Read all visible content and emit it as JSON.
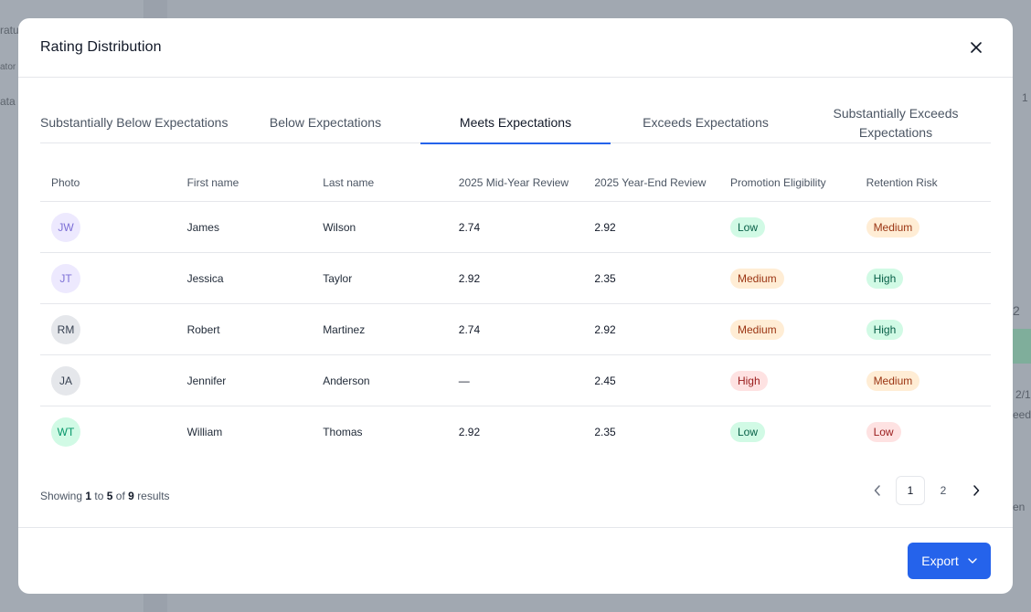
{
  "background": {
    "sidebar_fragments": [
      "ratu",
      "ator",
      "ata"
    ],
    "right_fragments": [
      "1",
      "2",
      "2/1",
      "eeds",
      "en"
    ]
  },
  "modal": {
    "title": "Rating Distribution",
    "tabs": [
      {
        "label": "Substantially Below Expectations",
        "active": false
      },
      {
        "label": "Below Expectations",
        "active": false
      },
      {
        "label": "Meets Expectations",
        "active": true
      },
      {
        "label": "Exceeds Expectations",
        "active": false
      },
      {
        "label": "Substantially Exceeds Expectations",
        "active": false
      }
    ],
    "table": {
      "columns": [
        "Photo",
        "First name",
        "Last name",
        "2025 Mid-Year Review",
        "2025 Year-End Review",
        "Promotion Eligibility",
        "Retention Risk"
      ],
      "rows": [
        {
          "initials": "JW",
          "avatar_bg": "#ede9fe",
          "avatar_fg": "#7c6fd6",
          "first": "James",
          "last": "Wilson",
          "mid": "2.74",
          "end": "2.92",
          "promotion": "Low",
          "promotion_style": "low-green",
          "risk": "Medium",
          "risk_style": "medium"
        },
        {
          "initials": "JT",
          "avatar_bg": "#ede9fe",
          "avatar_fg": "#7c6fd6",
          "first": "Jessica",
          "last": "Taylor",
          "mid": "2.92",
          "end": "2.35",
          "promotion": "Medium",
          "promotion_style": "medium",
          "risk": "High",
          "risk_style": "high-green"
        },
        {
          "initials": "RM",
          "avatar_bg": "#e5e7eb",
          "avatar_fg": "#374151",
          "first": "Robert",
          "last": "Martinez",
          "mid": "2.74",
          "end": "2.92",
          "promotion": "Medium",
          "promotion_style": "medium",
          "risk": "High",
          "risk_style": "high-green"
        },
        {
          "initials": "JA",
          "avatar_bg": "#e5e7eb",
          "avatar_fg": "#374151",
          "first": "Jennifer",
          "last": "Anderson",
          "mid": "—",
          "end": "2.45",
          "promotion": "High",
          "promotion_style": "high-red",
          "risk": "Medium",
          "risk_style": "medium"
        },
        {
          "initials": "WT",
          "avatar_bg": "#d1fae5",
          "avatar_fg": "#059669",
          "first": "William",
          "last": "Thomas",
          "mid": "2.92",
          "end": "2.35",
          "promotion": "Low",
          "promotion_style": "low-green",
          "risk": "Low",
          "risk_style": "low-red"
        }
      ]
    },
    "results": {
      "prefix": "Showing",
      "from": "1",
      "to_word": "to",
      "to": "5",
      "of_word": "of",
      "total": "9",
      "suffix": "results"
    },
    "pagination": {
      "pages": [
        "1",
        "2"
      ],
      "current": "1"
    },
    "export_label": "Export",
    "accent": "#2563eb"
  }
}
